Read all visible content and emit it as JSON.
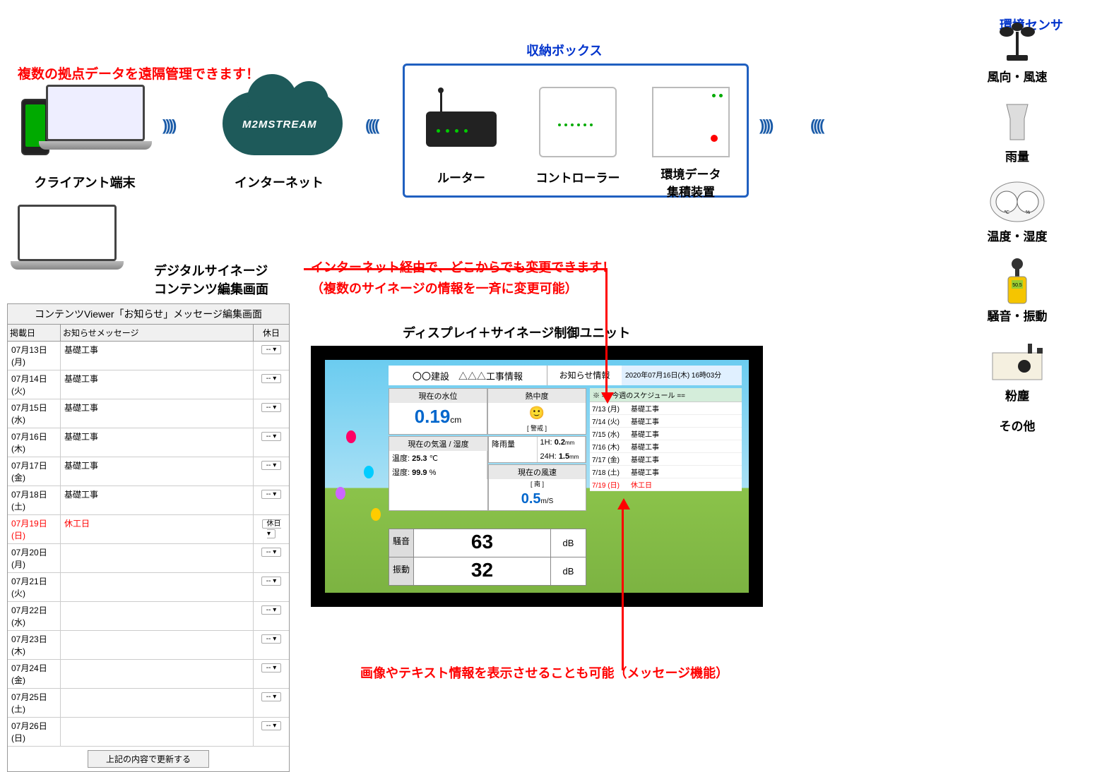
{
  "colors": {
    "red": "#ff0000",
    "blue": "#0033cc",
    "boxBorder": "#2060c0",
    "cloud": "#1e5a5a",
    "accentBlue": "#0066cc",
    "skyTop": "#6bccf0",
    "skyBot": "#a8e0f5",
    "grass": "#8bc34a"
  },
  "callouts": {
    "remote": "複数の拠点データを遠隔管理できます！",
    "internet1": "インターネット経由で、どこからでも変更できます！",
    "internet2": "（複数のサイネージの情報を一斉に変更可能）",
    "bottom": "画像やテキスト情報を表示させることも可能（メッセージ機能）"
  },
  "labels": {
    "client": "クライアント端末",
    "internet": "インターネット",
    "cloud": "M2MSTREAM",
    "storage": "収納ボックス",
    "router": "ルーター",
    "controller": "コントローラー",
    "envdev": "環境データ\n集積装置",
    "sensorHead": "環境センサ",
    "signageEditor": "デジタルサイネージ\nコンテンツ編集画面",
    "displayUnit": "ディスプレイ＋サイネージ制御ユニット"
  },
  "sensors": [
    {
      "name": "風向・風速",
      "icon": "anemometer"
    },
    {
      "name": "雨量",
      "icon": "rain-gauge"
    },
    {
      "name": "温度・湿度",
      "icon": "thermo-hygro"
    },
    {
      "name": "騒音・振動",
      "icon": "sound-meter"
    },
    {
      "name": "粉塵",
      "icon": "dust-meter"
    },
    {
      "name": "その他",
      "icon": "none"
    }
  ],
  "contentTable": {
    "title": "コンテンツViewer「お知らせ」メッセージ編集画面",
    "cols": [
      "掲載日",
      "お知らせメッセージ",
      "休日"
    ],
    "rows": [
      {
        "date": "07月13日(月)",
        "msg": "基礎工事",
        "hol": "--",
        "red": false
      },
      {
        "date": "07月14日(火)",
        "msg": "基礎工事",
        "hol": "--",
        "red": false
      },
      {
        "date": "07月15日(水)",
        "msg": "基礎工事",
        "hol": "--",
        "red": false
      },
      {
        "date": "07月16日(木)",
        "msg": "基礎工事",
        "hol": "--",
        "red": false
      },
      {
        "date": "07月17日(金)",
        "msg": "基礎工事",
        "hol": "--",
        "red": false
      },
      {
        "date": "07月18日(土)",
        "msg": "基礎工事",
        "hol": "--",
        "red": false
      },
      {
        "date": "07月19日(日)",
        "msg": "休工日",
        "hol": "休日",
        "red": true
      },
      {
        "date": "07月20日(月)",
        "msg": "",
        "hol": "--",
        "red": false
      },
      {
        "date": "07月21日(火)",
        "msg": "",
        "hol": "--",
        "red": false
      },
      {
        "date": "07月22日(水)",
        "msg": "",
        "hol": "--",
        "red": false
      },
      {
        "date": "07月23日(木)",
        "msg": "",
        "hol": "--",
        "red": false
      },
      {
        "date": "07月24日(金)",
        "msg": "",
        "hol": "--",
        "red": false
      },
      {
        "date": "07月25日(土)",
        "msg": "",
        "hol": "--",
        "red": false
      },
      {
        "date": "07月26日(日)",
        "msg": "",
        "hol": "--",
        "red": false
      }
    ],
    "button": "上記の内容で更新する"
  },
  "signage": {
    "title": "〇〇建設　△△△工事情報",
    "infoHead": "お知らせ情報",
    "timestamp": "2020年07月16日(木) 16時03分",
    "waterLevel": {
      "label": "現在の水位",
      "value": "0.19",
      "unit": "cm"
    },
    "heat": {
      "label": "熱中度",
      "status": "[ 警戒 ]"
    },
    "temp": {
      "label": "現在の気温 / 湿度",
      "t": "25.3",
      "tUnit": "℃",
      "h": "99.9",
      "hUnit": "%",
      "tLabel": "温度:",
      "hLabel": "湿度:"
    },
    "rain": {
      "label": "降雨量",
      "h1": "1H:",
      "v1": "0.2",
      "h24": "24H:",
      "v24": "1.5",
      "unit": "mm"
    },
    "wind": {
      "label": "現在の風速",
      "dir": "[ 南 ]",
      "value": "0.5",
      "unit": "m/S"
    },
    "noise": {
      "label": "騒音",
      "value": "63",
      "unit": "dB"
    },
    "vib": {
      "label": "振動",
      "value": "32",
      "unit": "dB"
    },
    "schedHead": "※ == 今週のスケジュール ==",
    "sched": [
      {
        "d": "7/13 (月)",
        "m": "基礎工事"
      },
      {
        "d": "7/14 (火)",
        "m": "基礎工事"
      },
      {
        "d": "7/15 (水)",
        "m": "基礎工事"
      },
      {
        "d": "7/16 (木)",
        "m": "基礎工事"
      },
      {
        "d": "7/17 (金)",
        "m": "基礎工事"
      },
      {
        "d": "7/18 (土)",
        "m": "基礎工事"
      },
      {
        "d": "7/19 (日)",
        "m": "休工日",
        "red": true
      }
    ]
  }
}
